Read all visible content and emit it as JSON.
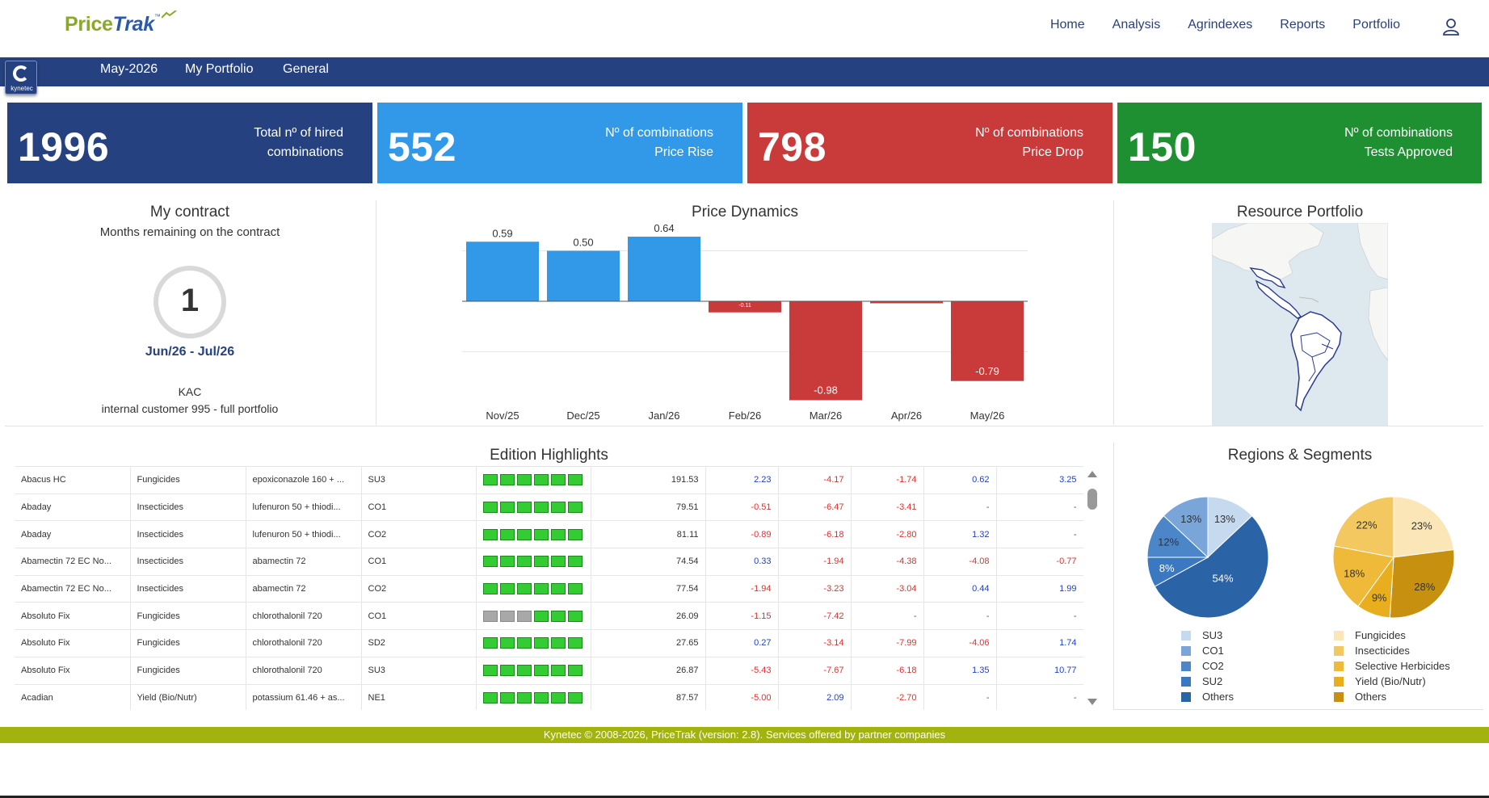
{
  "app": {
    "logo_price": "Price",
    "logo_trak": "Trak",
    "logo_tm": "™"
  },
  "nav": {
    "items": [
      "Home",
      "Analysis",
      "Agrindexes",
      "Reports",
      "Portfolio"
    ],
    "user_icon": "user-icon"
  },
  "subnav": {
    "badge_text": "kynetec",
    "items": [
      "May-2026",
      "My Portfolio",
      "General"
    ]
  },
  "kpis": [
    {
      "value": "1996",
      "line1": "Total nº of hired",
      "line2": "combinations",
      "color": "#25417f"
    },
    {
      "value": "552",
      "line1": "Nº of combinations",
      "line2": "Price Rise",
      "color": "#3299e8"
    },
    {
      "value": "798",
      "line1": "Nº of combinations",
      "line2": "Price Drop",
      "color": "#c93b3a"
    },
    {
      "value": "150",
      "line1": "Nº of combinations",
      "line2": "Tests Approved",
      "color": "#1f9032"
    }
  ],
  "contract": {
    "title": "My contract",
    "subtitle": "Months remaining on the contract",
    "months": "1",
    "range": "Jun/26 - Jul/26",
    "client_line1": "KAC",
    "client_line2": "internal customer 995 - full portfolio"
  },
  "price_dynamics": {
    "title": "Price Dynamics"
  },
  "chart_data": [
    {
      "type": "bar",
      "title": "Price Dynamics",
      "categories": [
        "Nov/25",
        "Dec/25",
        "Jan/26",
        "Feb/26",
        "Mar/26",
        "Apr/26",
        "May/26"
      ],
      "values": [
        0.59,
        0.5,
        0.64,
        -0.11,
        -0.98,
        -0.02,
        -0.79
      ],
      "labels": [
        "0.59",
        "0.50",
        "0.64",
        "-0.11",
        "-0.98",
        "",
        "-0.79"
      ],
      "positive_color": "#3299e8",
      "negative_color": "#c93b3a",
      "ylim": [
        -1.0,
        0.7
      ]
    },
    {
      "type": "pie",
      "title": "Regions & Segments",
      "series_name": "Regions",
      "labels": [
        "SU3",
        "CO1",
        "CO2",
        "SU2",
        "Others"
      ],
      "values": [
        13,
        13,
        12,
        8,
        54
      ],
      "colors": [
        "#c5d9ef",
        "#7aa5d8",
        "#4a86c8",
        "#3a79c2",
        "#2a63a6"
      ]
    },
    {
      "type": "pie",
      "title": "Regions & Segments",
      "series_name": "Segments",
      "labels": [
        "Fungicides",
        "Insecticides",
        "Selective Herbicides",
        "Yield (Bio/Nutr)",
        "Others"
      ],
      "values": [
        23,
        22,
        18,
        9,
        28
      ],
      "colors": [
        "#fbe6b7",
        "#f4c860",
        "#efb93a",
        "#e8ae1d",
        "#c7900e"
      ]
    }
  ],
  "resource_portfolio": {
    "title": "Resource Portfolio"
  },
  "edition_highlights": {
    "title": "Edition Highlights",
    "rows": [
      {
        "product": "Abacus HC",
        "segment": "Fungicides",
        "ingredient": "epoxiconazole 160 + ...",
        "region": "SU3",
        "blocks": "gggggg",
        "price": "191.53",
        "v1": "2.23",
        "v2": "-4.17",
        "v3": "-1.74",
        "v4": "0.62",
        "v5": "3.25"
      },
      {
        "product": "Abaday",
        "segment": "Insecticides",
        "ingredient": "lufenuron 50 + thiodi...",
        "region": "CO1",
        "blocks": "gggggg",
        "price": "79.51",
        "v1": "-0.51",
        "v2": "-6.47",
        "v3": "-3.41",
        "v4": "-",
        "v5": "-"
      },
      {
        "product": "Abaday",
        "segment": "Insecticides",
        "ingredient": "lufenuron 50 + thiodi...",
        "region": "CO2",
        "blocks": "gggggg",
        "price": "81.11",
        "v1": "-0.89",
        "v2": "-6.18",
        "v3": "-2.80",
        "v4": "1.32",
        "v5": "-"
      },
      {
        "product": "Abamectin 72 EC No...",
        "segment": "Insecticides",
        "ingredient": "abamectin 72",
        "region": "CO1",
        "blocks": "gggggg",
        "price": "74.54",
        "v1": "0.33",
        "v2": "-1.94",
        "v3": "-4.38",
        "v4": "-4.08",
        "v5": "-0.77"
      },
      {
        "product": "Abamectin 72 EC No...",
        "segment": "Insecticides",
        "ingredient": "abamectin 72",
        "region": "CO2",
        "blocks": "gggggg",
        "price": "77.54",
        "v1": "-1.94",
        "v2": "-3.23",
        "v3": "-3.04",
        "v4": "0.44",
        "v5": "1.99"
      },
      {
        "product": "Absoluto Fix",
        "segment": "Fungicides",
        "ingredient": "chlorothalonil 720",
        "region": "CO1",
        "blocks": "xxxggg",
        "price": "26.09",
        "v1": "-1.15",
        "v2": "-7.42",
        "v3": "-",
        "v4": "-",
        "v5": "-"
      },
      {
        "product": "Absoluto Fix",
        "segment": "Fungicides",
        "ingredient": "chlorothalonil 720",
        "region": "SD2",
        "blocks": "gggggg",
        "price": "27.65",
        "v1": "0.27",
        "v2": "-3.14",
        "v3": "-7.99",
        "v4": "-4.06",
        "v5": "1.74"
      },
      {
        "product": "Absoluto Fix",
        "segment": "Fungicides",
        "ingredient": "chlorothalonil 720",
        "region": "SU3",
        "blocks": "gggggg",
        "price": "26.87",
        "v1": "-5.43",
        "v2": "-7.67",
        "v3": "-6.18",
        "v4": "1.35",
        "v5": "10.77"
      },
      {
        "product": "Acadian",
        "segment": "Yield (Bio/Nutr)",
        "ingredient": "potassium 61.46 + as...",
        "region": "NE1",
        "blocks": "gggggg",
        "price": "87.57",
        "v1": "-5.00",
        "v2": "2.09",
        "v3": "-2.70",
        "v4": "-",
        "v5": "-"
      }
    ]
  },
  "regions_segments": {
    "title": "Regions & Segments"
  },
  "footer": {
    "text": "Kynetec © 2008-2026, PriceTrak (version: 2.8). Services offered by partner companies"
  }
}
